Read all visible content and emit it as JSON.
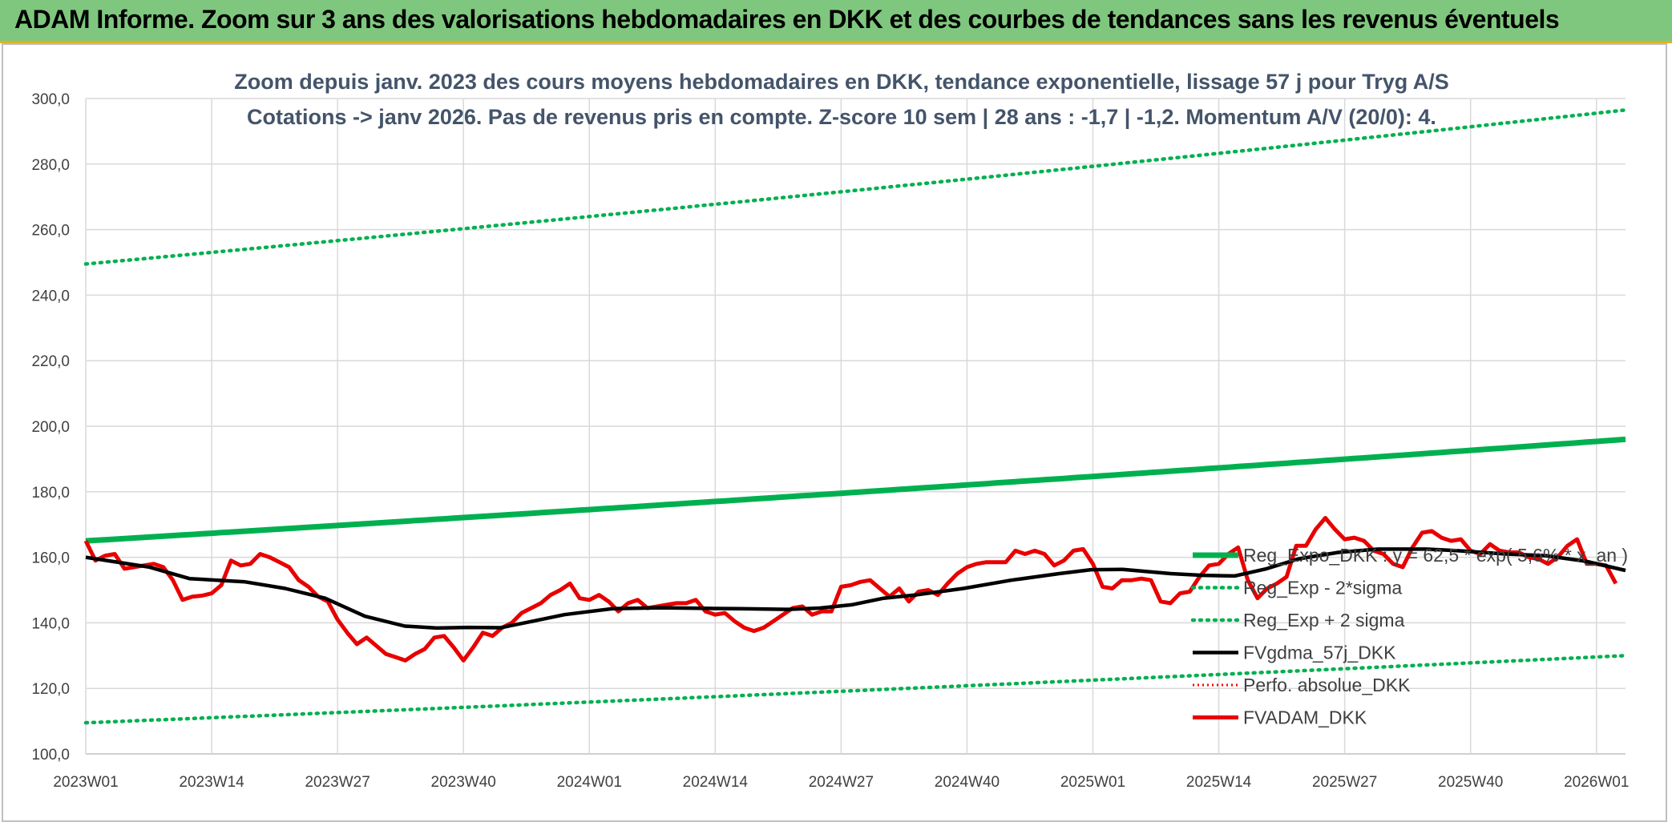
{
  "header": {
    "banner_title": "ADAM Informe. Zoom sur 3 ans des valorisations hebdomadaires en DKK et des courbes de tendances sans les revenus éventuels"
  },
  "chart_data": {
    "type": "line",
    "title_lines": [
      "Zoom depuis janv. 2023 des cours moyens hebdomadaires en DKK, tendance exponentielle, lissage 57 j pour Tryg A/S",
      "Cotations -> janv 2026. Pas de revenus pris en compte. Z-score 10 sem | 28 ans : -1,7 | -1,2. Momentum A/V (20/0): 4."
    ],
    "ylim": [
      100,
      300
    ],
    "y_ticks": [
      "100,0",
      "120,0",
      "140,0",
      "160,0",
      "180,0",
      "200,0",
      "220,0",
      "240,0",
      "260,0",
      "280,0",
      "300,0"
    ],
    "x_count": 160,
    "x_tick_labels": [
      "2023W01",
      "2023W14",
      "2023W27",
      "2023W40",
      "2024W01",
      "2024W14",
      "2024W27",
      "2024W40",
      "2025W01",
      "2025W14",
      "2025W27",
      "2025W40",
      "2026W01"
    ],
    "grid": true,
    "legend_position": "right",
    "colors": {
      "reg_expo": "#00b050",
      "sigma": "#00b050",
      "fvgdma": "#000000",
      "perfo": "#ff0000",
      "fvadam": "#e80000",
      "banner": "#7fc77e"
    },
    "legend": [
      {
        "key": "reg_expo",
        "label": "Reg_Expo_DKK : y = 62,5 * exp( 5,6% * x_an )",
        "style": "solid-thick"
      },
      {
        "key": "reg_minus",
        "label": "Reg_Exp - 2*sigma",
        "style": "dotted-green"
      },
      {
        "key": "reg_plus",
        "label": "Reg_Exp + 2 sigma",
        "style": "dotted-green"
      },
      {
        "key": "fvgdma",
        "label": "FVgdma_57j_DKK",
        "style": "solid-black"
      },
      {
        "key": "perfo",
        "label": "Perfo. absolue_DKK",
        "style": "dotted-red"
      },
      {
        "key": "fvadam",
        "label": "FVADAM_DKK",
        "style": "solid-red"
      }
    ],
    "series": [
      {
        "key": "reg_expo",
        "name": "Reg_Expo_DKK : y = 62,5 * exp( 5,6% * x_an )",
        "start": 165.0,
        "end": 196.0
      },
      {
        "key": "reg_minus",
        "name": "Reg_Exp - 2*sigma",
        "start": 109.5,
        "end": 130.0
      },
      {
        "key": "reg_plus",
        "name": "Reg_Exp + 2 sigma",
        "start": 249.5,
        "end": 296.5
      },
      {
        "key": "fvgdma",
        "name": "FVgdma_57j_DKK",
        "points": [
          [
            0,
            160
          ],
          [
            8,
            157
          ],
          [
            13,
            153.5
          ],
          [
            20,
            152.5
          ],
          [
            25,
            150.5
          ],
          [
            30,
            147.5
          ],
          [
            35,
            142
          ],
          [
            40,
            139
          ],
          [
            44,
            138.4
          ],
          [
            48,
            138.6
          ],
          [
            52,
            138.5
          ],
          [
            56,
            140.5
          ],
          [
            60,
            142.5
          ],
          [
            66,
            144.3
          ],
          [
            72,
            144.6
          ],
          [
            78,
            144.4
          ],
          [
            82,
            144.3
          ],
          [
            88,
            144.1
          ],
          [
            92,
            144.5
          ],
          [
            96,
            145.5
          ],
          [
            100,
            147.5
          ],
          [
            104,
            148.5
          ],
          [
            110,
            150.5
          ],
          [
            116,
            153
          ],
          [
            122,
            155
          ],
          [
            126,
            156.2
          ],
          [
            130,
            156.3
          ],
          [
            136,
            155
          ],
          [
            140,
            154.5
          ],
          [
            144,
            154.3
          ],
          [
            148,
            156.5
          ],
          [
            152,
            159.5
          ],
          [
            157,
            161.5
          ],
          [
            162,
            162.5
          ],
          [
            168,
            162.5
          ],
          [
            172,
            162
          ],
          [
            178,
            161
          ],
          [
            183,
            160.5
          ],
          [
            188,
            158.8
          ],
          [
            193,
            156
          ]
        ]
      },
      {
        "key": "fvadam",
        "name": "FVADAM_DKK",
        "values": [
          165,
          159,
          160.5,
          161,
          156.5,
          157,
          157.5,
          158,
          157,
          153,
          147,
          148,
          148.3,
          149,
          151.5,
          159,
          157.5,
          158,
          161,
          160,
          158.5,
          157,
          153,
          151,
          148,
          146.5,
          141,
          137,
          133.5,
          135.5,
          133,
          130.5,
          129.5,
          128.5,
          130.5,
          132,
          135.5,
          136,
          132.5,
          128.5,
          132.5,
          137,
          136,
          138.5,
          140,
          143,
          144.5,
          146,
          148.5,
          150,
          152,
          147.5,
          147,
          148.5,
          146.5,
          143.5,
          146,
          147,
          144.5,
          145,
          145.5,
          146,
          146,
          147,
          143.5,
          142.5,
          143,
          140.5,
          138.5,
          137.5,
          138.5,
          140.5,
          142.5,
          144.5,
          145,
          142.5,
          143.5,
          143.5,
          151,
          151.5,
          152.5,
          153,
          150.5,
          148,
          150.5,
          146.5,
          149.5,
          150,
          148.5,
          152,
          155,
          157,
          158,
          158.5,
          158.5,
          158.5,
          162,
          161,
          162,
          161,
          157.5,
          159,
          162,
          162.5,
          158,
          151,
          150.5,
          153,
          153,
          153.5,
          153,
          146.5,
          146,
          149,
          149.5,
          154,
          157.5,
          158,
          161,
          163,
          153,
          147.5,
          150.5,
          152,
          154,
          163.5,
          163.5,
          168.5,
          172,
          168.5,
          165.5,
          166,
          165,
          162,
          161,
          158,
          157,
          163,
          167.5,
          168,
          166,
          165,
          165.5,
          162,
          161,
          164,
          162,
          161.5,
          161.5,
          160,
          159.5,
          158,
          160,
          163.5,
          165.5,
          158,
          158,
          157.5,
          152
        ]
      }
    ]
  }
}
